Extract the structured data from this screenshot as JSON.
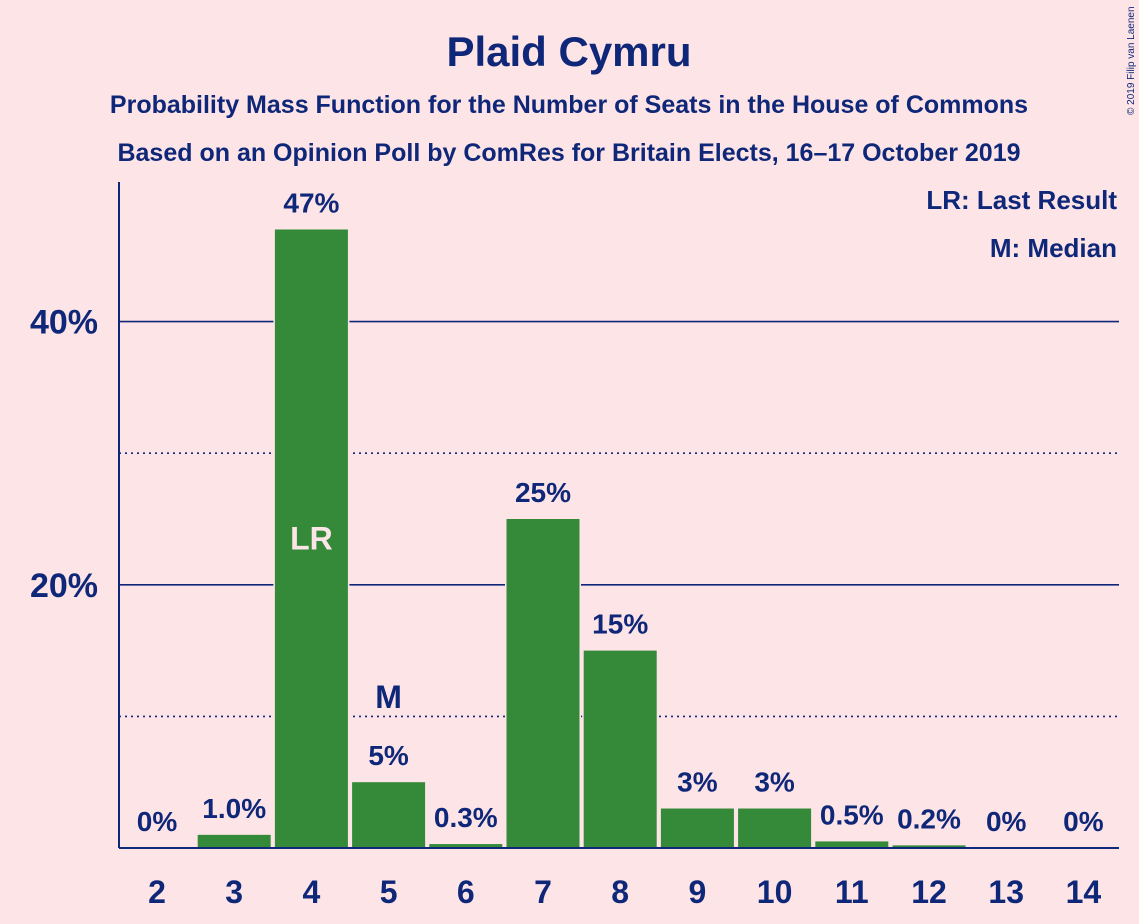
{
  "title": "Plaid Cymru",
  "subtitle1": "Probability Mass Function for the Number of Seats in the House of Commons",
  "subtitle2": "Based on an Opinion Poll by ComRes for Britain Elects, 16–17 October 2019",
  "legend": {
    "last_result": "LR: Last Result",
    "median": "M: Median"
  },
  "copyright": "© 2019 Filip van Laenen",
  "colors": {
    "background": "#fde4e6",
    "bar": "#358a3a",
    "text": "#0f2778",
    "inside_label": "#fde4e6"
  },
  "chart_data": {
    "type": "bar",
    "categories": [
      "2",
      "3",
      "4",
      "5",
      "6",
      "7",
      "8",
      "9",
      "10",
      "11",
      "12",
      "13",
      "14"
    ],
    "values": [
      0,
      1.0,
      47,
      5,
      0.3,
      25,
      15,
      3,
      3,
      0.5,
      0.2,
      0,
      0
    ],
    "data_labels": [
      "0%",
      "1.0%",
      "47%",
      "5%",
      "0.3%",
      "25%",
      "15%",
      "3%",
      "3%",
      "0.5%",
      "0.2%",
      "0%",
      "0%"
    ],
    "ylim": [
      0,
      50
    ],
    "yticks": [
      20,
      40
    ],
    "ytick_labels": [
      "20%",
      "40%"
    ],
    "minor_gridlines": [
      10,
      30
    ],
    "markers": [
      {
        "category": "4",
        "label": "LR",
        "position": "inside"
      },
      {
        "category": "5",
        "label": "M",
        "position": "above"
      }
    ],
    "legend_placement": "top-right",
    "grid": true
  }
}
